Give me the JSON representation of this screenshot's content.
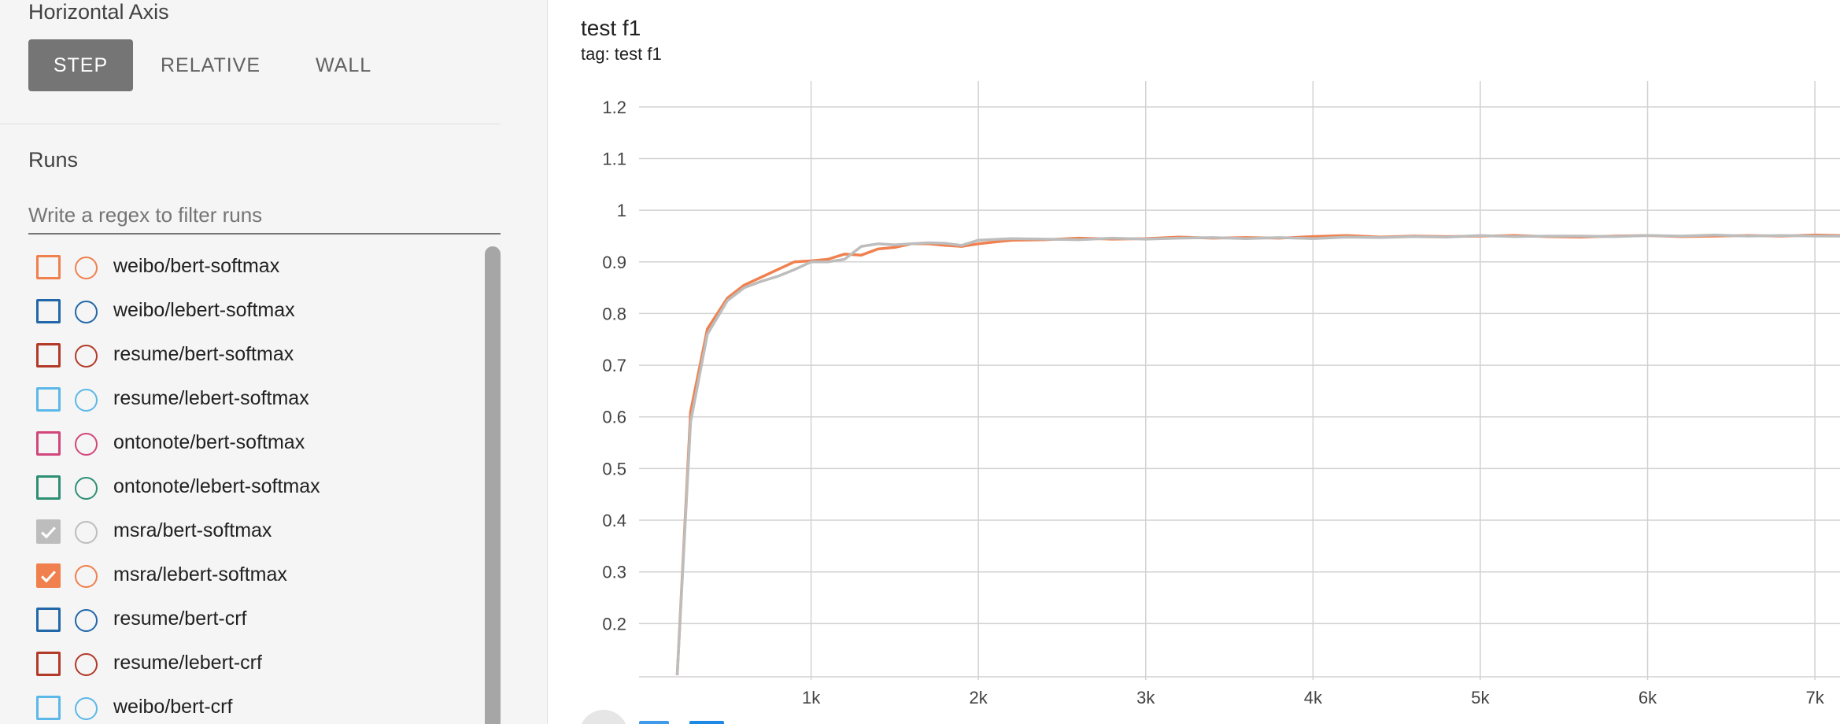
{
  "sidebar": {
    "horizontal_axis_title": "Horizontal Axis",
    "axis_buttons": [
      "STEP",
      "RELATIVE",
      "WALL"
    ],
    "active_axis": "STEP",
    "runs_title": "Runs",
    "filter_placeholder": "Write a regex to filter runs",
    "runs": [
      {
        "name": "weibo/bert-softmax",
        "color": "#f0804e",
        "checked": false
      },
      {
        "name": "weibo/lebert-softmax",
        "color": "#2267a9",
        "checked": false
      },
      {
        "name": "resume/bert-softmax",
        "color": "#b23a28",
        "checked": false
      },
      {
        "name": "resume/lebert-softmax",
        "color": "#5cb8e8",
        "checked": false
      },
      {
        "name": "ontonote/bert-softmax",
        "color": "#d1477b",
        "checked": false
      },
      {
        "name": "ontonote/lebert-softmax",
        "color": "#2e8f75",
        "checked": false
      },
      {
        "name": "msra/bert-softmax",
        "color": "#bdbdbd",
        "checked": true
      },
      {
        "name": "msra/lebert-softmax",
        "color": "#f0804e",
        "checked": true
      },
      {
        "name": "resume/bert-crf",
        "color": "#2267a9",
        "checked": false
      },
      {
        "name": "resume/lebert-crf",
        "color": "#b23a28",
        "checked": false
      },
      {
        "name": "weibo/bert-crf",
        "color": "#5cb8e8",
        "checked": false
      }
    ]
  },
  "chart": {
    "title": "test f1",
    "tag": "tag: test f1"
  },
  "chart_data": {
    "type": "line",
    "title": "test f1",
    "xlabel": "",
    "ylabel": "",
    "x_ticks": [
      1000,
      2000,
      3000,
      4000,
      5000,
      6000,
      7000
    ],
    "x_tick_labels": [
      "1k",
      "2k",
      "3k",
      "4k",
      "5k",
      "6k",
      "7k"
    ],
    "y_ticks": [
      0.2,
      0.3,
      0.4,
      0.5,
      0.6,
      0.7,
      0.8,
      0.9,
      1,
      1.1,
      1.2
    ],
    "y_tick_labels": [
      "0.2",
      "0.3",
      "0.4",
      "0.5",
      "0.6",
      "0.7",
      "0.8",
      "0.9",
      "1",
      "1.1",
      "1.2"
    ],
    "xlim": [
      0,
      7150
    ],
    "ylim": [
      0.1,
      1.25
    ],
    "grid": true,
    "series": [
      {
        "color": "#f0804e",
        "x": [
          200,
          280,
          380,
          500,
          600,
          700,
          800,
          900,
          1000,
          1100,
          1200,
          1300,
          1400,
          1500,
          1600,
          1700,
          1800,
          1900,
          2000,
          2200,
          2400,
          2600,
          2800,
          3000,
          3200,
          3400,
          3600,
          3800,
          4000,
          4200,
          4400,
          4600,
          4800,
          5000,
          5200,
          5400,
          5600,
          5800,
          6000,
          6200,
          6400,
          6600,
          6800,
          7000,
          7150
        ],
        "y": [
          0.1,
          0.61,
          0.77,
          0.83,
          0.855,
          0.87,
          0.885,
          0.9,
          0.902,
          0.905,
          0.915,
          0.913,
          0.925,
          0.928,
          0.935,
          0.935,
          0.932,
          0.93,
          0.935,
          0.942,
          0.943,
          0.946,
          0.944,
          0.945,
          0.948,
          0.946,
          0.947,
          0.946,
          0.949,
          0.951,
          0.948,
          0.95,
          0.949,
          0.95,
          0.951,
          0.949,
          0.948,
          0.95,
          0.951,
          0.949,
          0.95,
          0.951,
          0.95,
          0.952,
          0.951
        ]
      },
      {
        "color": "#bdbdbd",
        "x": [
          200,
          280,
          380,
          500,
          600,
          700,
          800,
          900,
          1000,
          1100,
          1200,
          1300,
          1400,
          1500,
          1600,
          1700,
          1800,
          1900,
          2000,
          2200,
          2400,
          2600,
          2800,
          3000,
          3200,
          3400,
          3600,
          3800,
          4000,
          4200,
          4400,
          4600,
          4800,
          5000,
          5200,
          5400,
          5600,
          5800,
          6000,
          6200,
          6400,
          6600,
          6800,
          7000,
          7150
        ],
        "y": [
          0.1,
          0.59,
          0.76,
          0.825,
          0.85,
          0.862,
          0.872,
          0.885,
          0.9,
          0.9,
          0.905,
          0.93,
          0.935,
          0.933,
          0.935,
          0.937,
          0.936,
          0.932,
          0.942,
          0.945,
          0.944,
          0.943,
          0.946,
          0.944,
          0.946,
          0.947,
          0.945,
          0.947,
          0.945,
          0.948,
          0.947,
          0.949,
          0.948,
          0.951,
          0.949,
          0.95,
          0.95,
          0.949,
          0.951,
          0.95,
          0.952,
          0.95,
          0.951,
          0.95,
          0.95
        ]
      }
    ]
  }
}
